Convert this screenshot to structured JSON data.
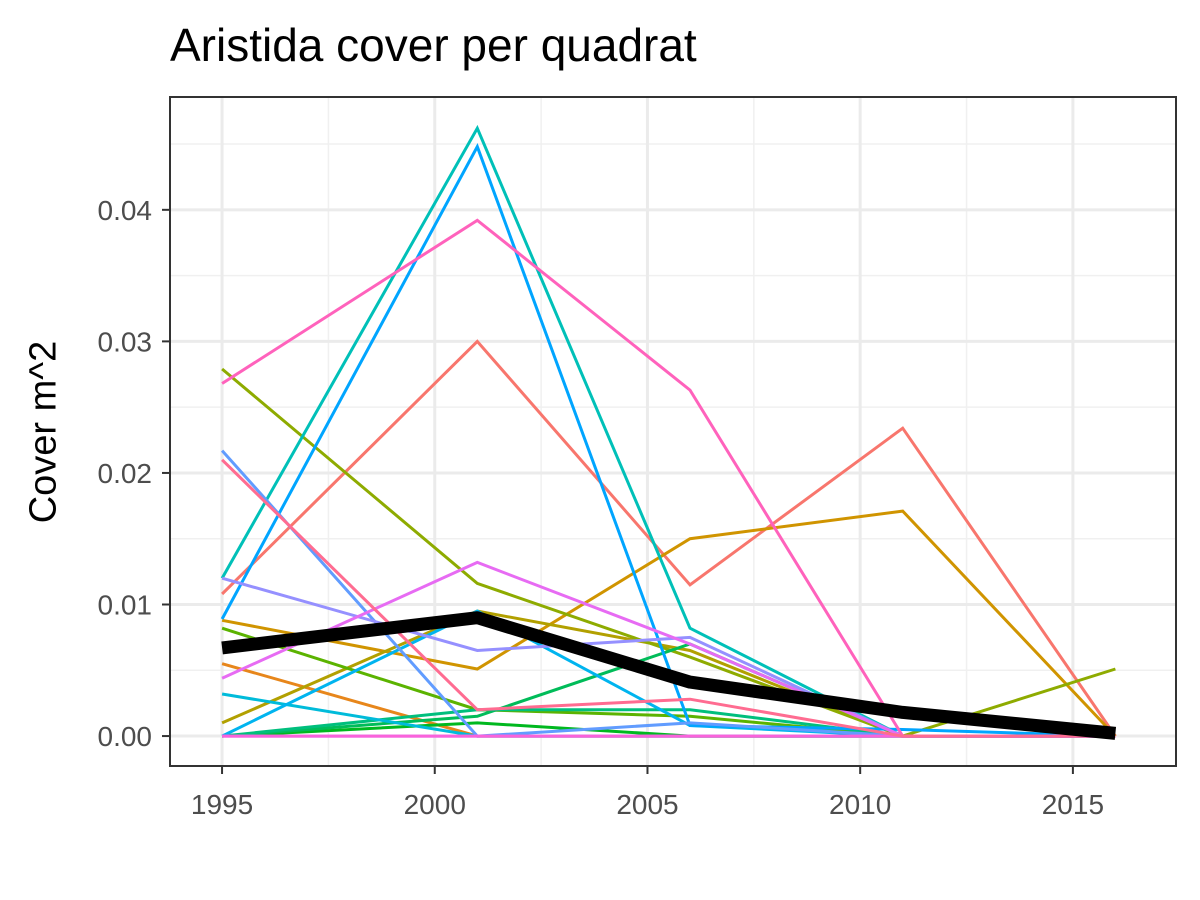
{
  "chart_data": {
    "type": "line",
    "title": "Aristida cover per quadrat",
    "xlabel": "",
    "ylabel": "Cover m^2",
    "xlim": [
      1993.8,
      2017.4
    ],
    "ylim": [
      -0.0022,
      0.0485
    ],
    "x_ticks": [
      1995,
      2000,
      2005,
      2010,
      2015
    ],
    "x_tick_labels": [
      "1995",
      "2000",
      "2005",
      "2010",
      "2015"
    ],
    "y_ticks": [
      0.0,
      0.01,
      0.02,
      0.03,
      0.04
    ],
    "y_tick_labels": [
      "0.00",
      "0.01",
      "0.02",
      "0.03",
      "0.04"
    ],
    "grid": true,
    "legend": "none",
    "x": [
      1995,
      2001,
      2006,
      2011,
      2016
    ],
    "series": [
      {
        "color": "#F8766D",
        "values": [
          0.0108,
          0.03,
          0.0115,
          0.0234,
          0.0
        ]
      },
      {
        "color": "#E7861B",
        "values": [
          0.0055,
          0.0,
          0.0,
          0.0,
          0.0
        ]
      },
      {
        "color": "#D09400",
        "values": [
          0.0088,
          0.0051,
          0.015,
          0.0171,
          0.0
        ]
      },
      {
        "color": "#B2A000",
        "values": [
          0.001,
          0.0095,
          0.0065,
          0.0,
          0.0
        ]
      },
      {
        "color": "#8EAB00",
        "values": [
          0.0279,
          0.0116,
          0.006,
          0.0,
          0.0051
        ]
      },
      {
        "color": "#5BB300",
        "values": [
          0.0082,
          0.002,
          0.0015,
          0.0,
          0.0
        ]
      },
      {
        "color": "#00B81F",
        "values": [
          0.0,
          0.001,
          0.0,
          0.0,
          0.0
        ]
      },
      {
        "color": "#00BC59",
        "values": [
          0.0,
          0.0015,
          0.007,
          0.0,
          0.0
        ]
      },
      {
        "color": "#00BF7D",
        "values": [
          0.0,
          0.002,
          0.002,
          0.0,
          0.0
        ]
      },
      {
        "color": "#00C0B8",
        "values": [
          0.012,
          0.0462,
          0.0082,
          0.0,
          0.0
        ]
      },
      {
        "color": "#00BBDA",
        "values": [
          0.0032,
          0.0,
          0.0,
          0.0,
          0.0
        ]
      },
      {
        "color": "#00B4EF",
        "values": [
          0.0,
          0.0095,
          0.0008,
          0.0,
          0.0
        ]
      },
      {
        "color": "#00A5FF",
        "values": [
          0.0089,
          0.0448,
          0.0008,
          0.0005,
          0.0
        ]
      },
      {
        "color": "#619CFF",
        "values": [
          0.0217,
          0.0,
          0.001,
          0.0,
          0.0
        ]
      },
      {
        "color": "#9590FF",
        "values": [
          0.012,
          0.0065,
          0.0075,
          0.0,
          0.0
        ]
      },
      {
        "color": "#C77CFF",
        "values": [
          0.0,
          0.0,
          0.0,
          0.0,
          0.0
        ]
      },
      {
        "color": "#E76BF3",
        "values": [
          0.0044,
          0.0132,
          0.007,
          0.0,
          0.0
        ]
      },
      {
        "color": "#FA62DB",
        "values": [
          0.0,
          0.0,
          0.0,
          0.0,
          0.0
        ]
      },
      {
        "color": "#FF62BC",
        "values": [
          0.0268,
          0.0392,
          0.0263,
          0.0,
          0.0
        ]
      },
      {
        "color": "#FF6C91",
        "values": [
          0.021,
          0.002,
          0.0028,
          0.0,
          0.0
        ]
      }
    ],
    "mean_line": {
      "color": "#000000",
      "values": [
        0.0067,
        0.009,
        0.0041,
        0.0018,
        0.0002
      ]
    }
  }
}
